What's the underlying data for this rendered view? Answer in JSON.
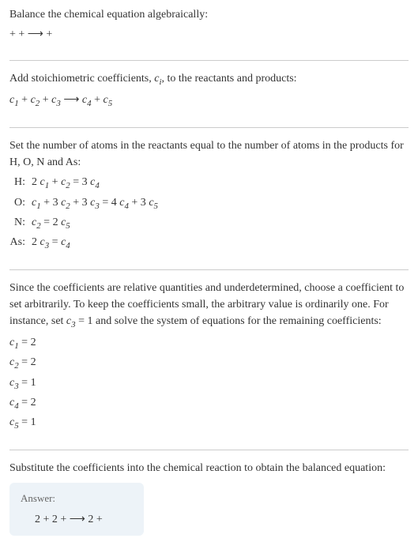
{
  "section1": {
    "line1": "Balance the chemical equation algebraically:",
    "line2": " +  +  ⟶  + "
  },
  "section2": {
    "line1_pre": "Add stoichiometric coefficients, ",
    "line1_c": "c",
    "line1_sub": "i",
    "line1_post": ", to the reactants and products:",
    "eq_c1": "c",
    "eq_s1": "1",
    "eq_p1": "  + ",
    "eq_c2": "c",
    "eq_s2": "2",
    "eq_p2": "  + ",
    "eq_c3": "c",
    "eq_s3": "3",
    "eq_arrow": "   ⟶ ",
    "eq_c4": "c",
    "eq_s4": "4",
    "eq_p4": "  + ",
    "eq_c5": "c",
    "eq_s5": "5"
  },
  "section3": {
    "line1": "Set the number of atoms in the reactants equal to the number of atoms in the products for H, O, N and As:",
    "atoms": [
      {
        "label": "H:",
        "parts": [
          {
            "t": "2 "
          },
          {
            "t": "c",
            "i": true
          },
          {
            "t": "1",
            "s": true
          },
          {
            "t": " + "
          },
          {
            "t": "c",
            "i": true
          },
          {
            "t": "2",
            "s": true
          },
          {
            "t": " = 3 "
          },
          {
            "t": "c",
            "i": true
          },
          {
            "t": "4",
            "s": true
          }
        ]
      },
      {
        "label": "O:",
        "parts": [
          {
            "t": "c",
            "i": true
          },
          {
            "t": "1",
            "s": true
          },
          {
            "t": " + 3 "
          },
          {
            "t": "c",
            "i": true
          },
          {
            "t": "2",
            "s": true
          },
          {
            "t": " + 3 "
          },
          {
            "t": "c",
            "i": true
          },
          {
            "t": "3",
            "s": true
          },
          {
            "t": " = 4 "
          },
          {
            "t": "c",
            "i": true
          },
          {
            "t": "4",
            "s": true
          },
          {
            "t": " + 3 "
          },
          {
            "t": "c",
            "i": true
          },
          {
            "t": "5",
            "s": true
          }
        ]
      },
      {
        "label": "N:",
        "parts": [
          {
            "t": "c",
            "i": true
          },
          {
            "t": "2",
            "s": true
          },
          {
            "t": " = 2 "
          },
          {
            "t": "c",
            "i": true
          },
          {
            "t": "5",
            "s": true
          }
        ]
      },
      {
        "label": "As:",
        "parts": [
          {
            "t": "2 "
          },
          {
            "t": "c",
            "i": true
          },
          {
            "t": "3",
            "s": true
          },
          {
            "t": " = "
          },
          {
            "t": "c",
            "i": true
          },
          {
            "t": "4",
            "s": true
          }
        ]
      }
    ]
  },
  "section4": {
    "line1_a": "Since the coefficients are relative quantities and underdetermined, choose a coefficient to set arbitrarily. To keep the coefficients small, the arbitrary value is ordinarily one. For instance, set ",
    "line1_c": "c",
    "line1_s": "3",
    "line1_b": " = 1 and solve the system of equations for the remaining coefficients:",
    "coeffs": [
      {
        "c": "c",
        "s": "1",
        "v": " = 2"
      },
      {
        "c": "c",
        "s": "2",
        "v": " = 2"
      },
      {
        "c": "c",
        "s": "3",
        "v": " = 1"
      },
      {
        "c": "c",
        "s": "4",
        "v": " = 2"
      },
      {
        "c": "c",
        "s": "5",
        "v": " = 1"
      }
    ]
  },
  "section5": {
    "line1": "Substitute the coefficients into the chemical reaction to obtain the balanced equation:",
    "answer_label": "Answer:",
    "answer_eq": "2  + 2  +  ⟶ 2  + "
  }
}
